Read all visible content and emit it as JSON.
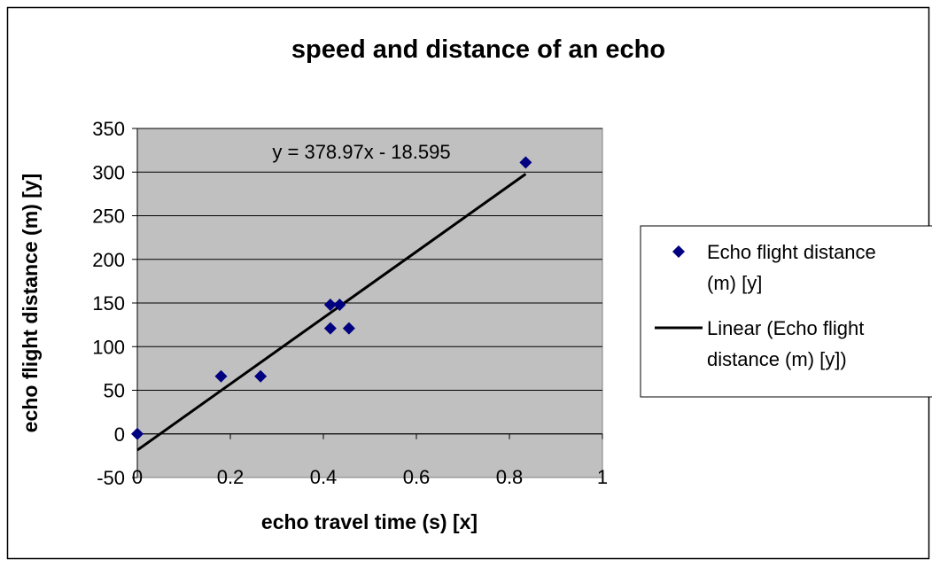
{
  "chart_data": {
    "type": "scatter",
    "title": "speed and distance of an echo",
    "xlabel": "echo travel time (s) [x]",
    "ylabel": "echo flight distance (m) [y]",
    "xlim": [
      0,
      1
    ],
    "ylim": [
      -50,
      350
    ],
    "xticks": [
      0,
      0.2,
      0.4,
      0.6,
      0.8,
      1
    ],
    "yticks": [
      -50,
      0,
      50,
      100,
      150,
      200,
      250,
      300,
      350
    ],
    "xtick_labels": [
      "0",
      "0.2",
      "0.4",
      "0.6",
      "0.8",
      "1"
    ],
    "ytick_labels": [
      "-50",
      "0",
      "50",
      "100",
      "150",
      "200",
      "250",
      "300",
      "350"
    ],
    "grid": "horizontal",
    "legend_position": "right",
    "series": [
      {
        "name": "Echo flight distance (m) [y]",
        "marker": "diamond",
        "color": "#000080",
        "points": [
          {
            "x": 0,
            "y": 0
          },
          {
            "x": 0.18,
            "y": 66
          },
          {
            "x": 0.265,
            "y": 66
          },
          {
            "x": 0.415,
            "y": 121
          },
          {
            "x": 0.415,
            "y": 148
          },
          {
            "x": 0.435,
            "y": 148
          },
          {
            "x": 0.455,
            "y": 121
          },
          {
            "x": 0.835,
            "y": 311
          }
        ]
      }
    ],
    "trendline": {
      "name": "Linear (Echo flight distance (m) [y])",
      "slope": 378.97,
      "intercept": -18.595,
      "x_range": [
        0,
        0.835
      ],
      "equation_label": "y = 378.97x - 18.595",
      "color": "#000000"
    },
    "legend": {
      "entries": [
        {
          "kind": "marker",
          "lines": [
            "Echo flight distance",
            "(m) [y]"
          ]
        },
        {
          "kind": "line",
          "lines": [
            "Linear (Echo flight",
            "distance (m) [y])"
          ]
        }
      ]
    },
    "colors": {
      "plot_background": "#c0c0c0",
      "gridline": "#000000",
      "marker": "#000080",
      "trendline": "#000000"
    }
  }
}
